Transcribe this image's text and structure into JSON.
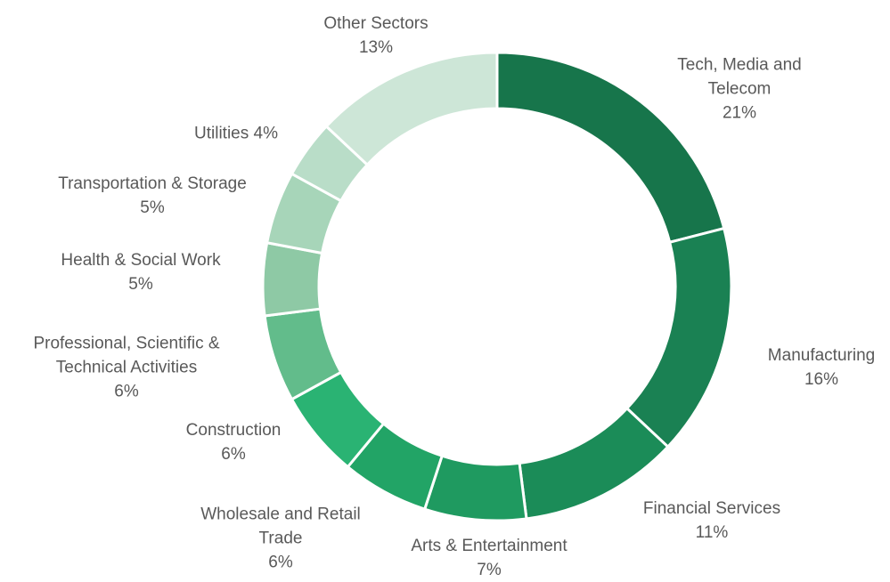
{
  "chart_data": {
    "type": "donut",
    "categories": [
      "Tech, Media and Telecom",
      "Manufacturing",
      "Financial Services",
      "Arts & Entertainment",
      "Wholesale and Retail Trade",
      "Construction",
      "Professional, Scientific & Technical Activities",
      "Health & Social Work",
      "Transportation & Storage",
      "Utilities",
      "Other Sectors"
    ],
    "values": [
      21,
      16,
      11,
      7,
      6,
      6,
      6,
      5,
      5,
      4,
      13
    ],
    "value_labels": [
      "21%",
      "16%",
      "11%",
      "7%",
      "6%",
      "6%",
      "6%",
      "5%",
      "5%",
      "4%",
      "13%"
    ],
    "colors": [
      "#17754b",
      "#1a8153",
      "#1b8c58",
      "#1f9a60",
      "#22a466",
      "#2ab373",
      "#62bc8b",
      "#8ec9a5",
      "#a7d5b9",
      "#b9ddc8",
      "#cde6d7"
    ]
  }
}
